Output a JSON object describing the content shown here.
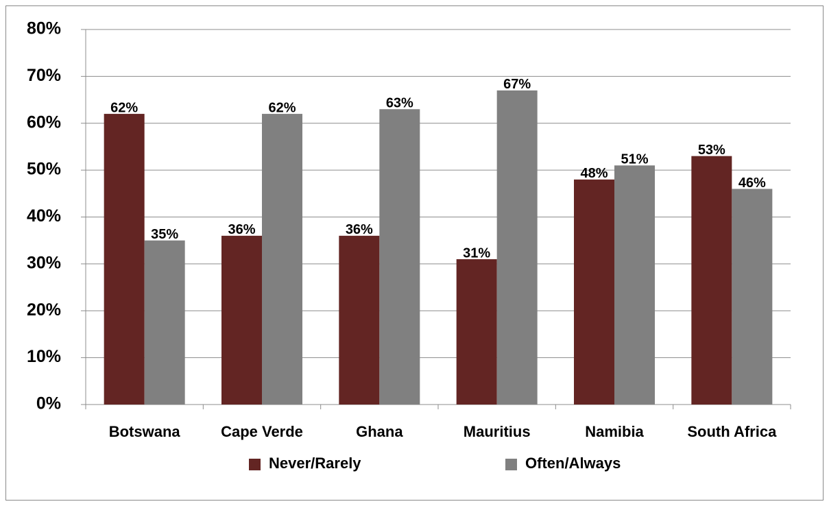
{
  "chart_data": {
    "type": "bar",
    "categories": [
      "Botswana",
      "Cape Verde",
      "Ghana",
      "Mauritius",
      "Namibia",
      "South Africa"
    ],
    "series": [
      {
        "name": "Never/Rarely",
        "color": "#632523",
        "values": [
          62,
          36,
          36,
          31,
          48,
          53
        ],
        "value_labels": [
          "62%",
          "36%",
          "36%",
          "31%",
          "48%",
          "53%"
        ]
      },
      {
        "name": "Often/Always",
        "color": "#808080",
        "values": [
          35,
          62,
          63,
          67,
          51,
          46
        ],
        "value_labels": [
          "35%",
          "62%",
          "63%",
          "67%",
          "51%",
          "46%"
        ]
      }
    ],
    "ylim": [
      0,
      80
    ],
    "yticks": [
      {
        "value": 0,
        "label": "0%"
      },
      {
        "value": 10,
        "label": "10%"
      },
      {
        "value": 20,
        "label": "20%"
      },
      {
        "value": 30,
        "label": "30%"
      },
      {
        "value": 40,
        "label": "40%"
      },
      {
        "value": 50,
        "label": "50%"
      },
      {
        "value": 60,
        "label": "60%"
      },
      {
        "value": 70,
        "label": "70%"
      },
      {
        "value": 80,
        "label": "80%"
      }
    ],
    "grid": true,
    "legend": "bottom"
  }
}
